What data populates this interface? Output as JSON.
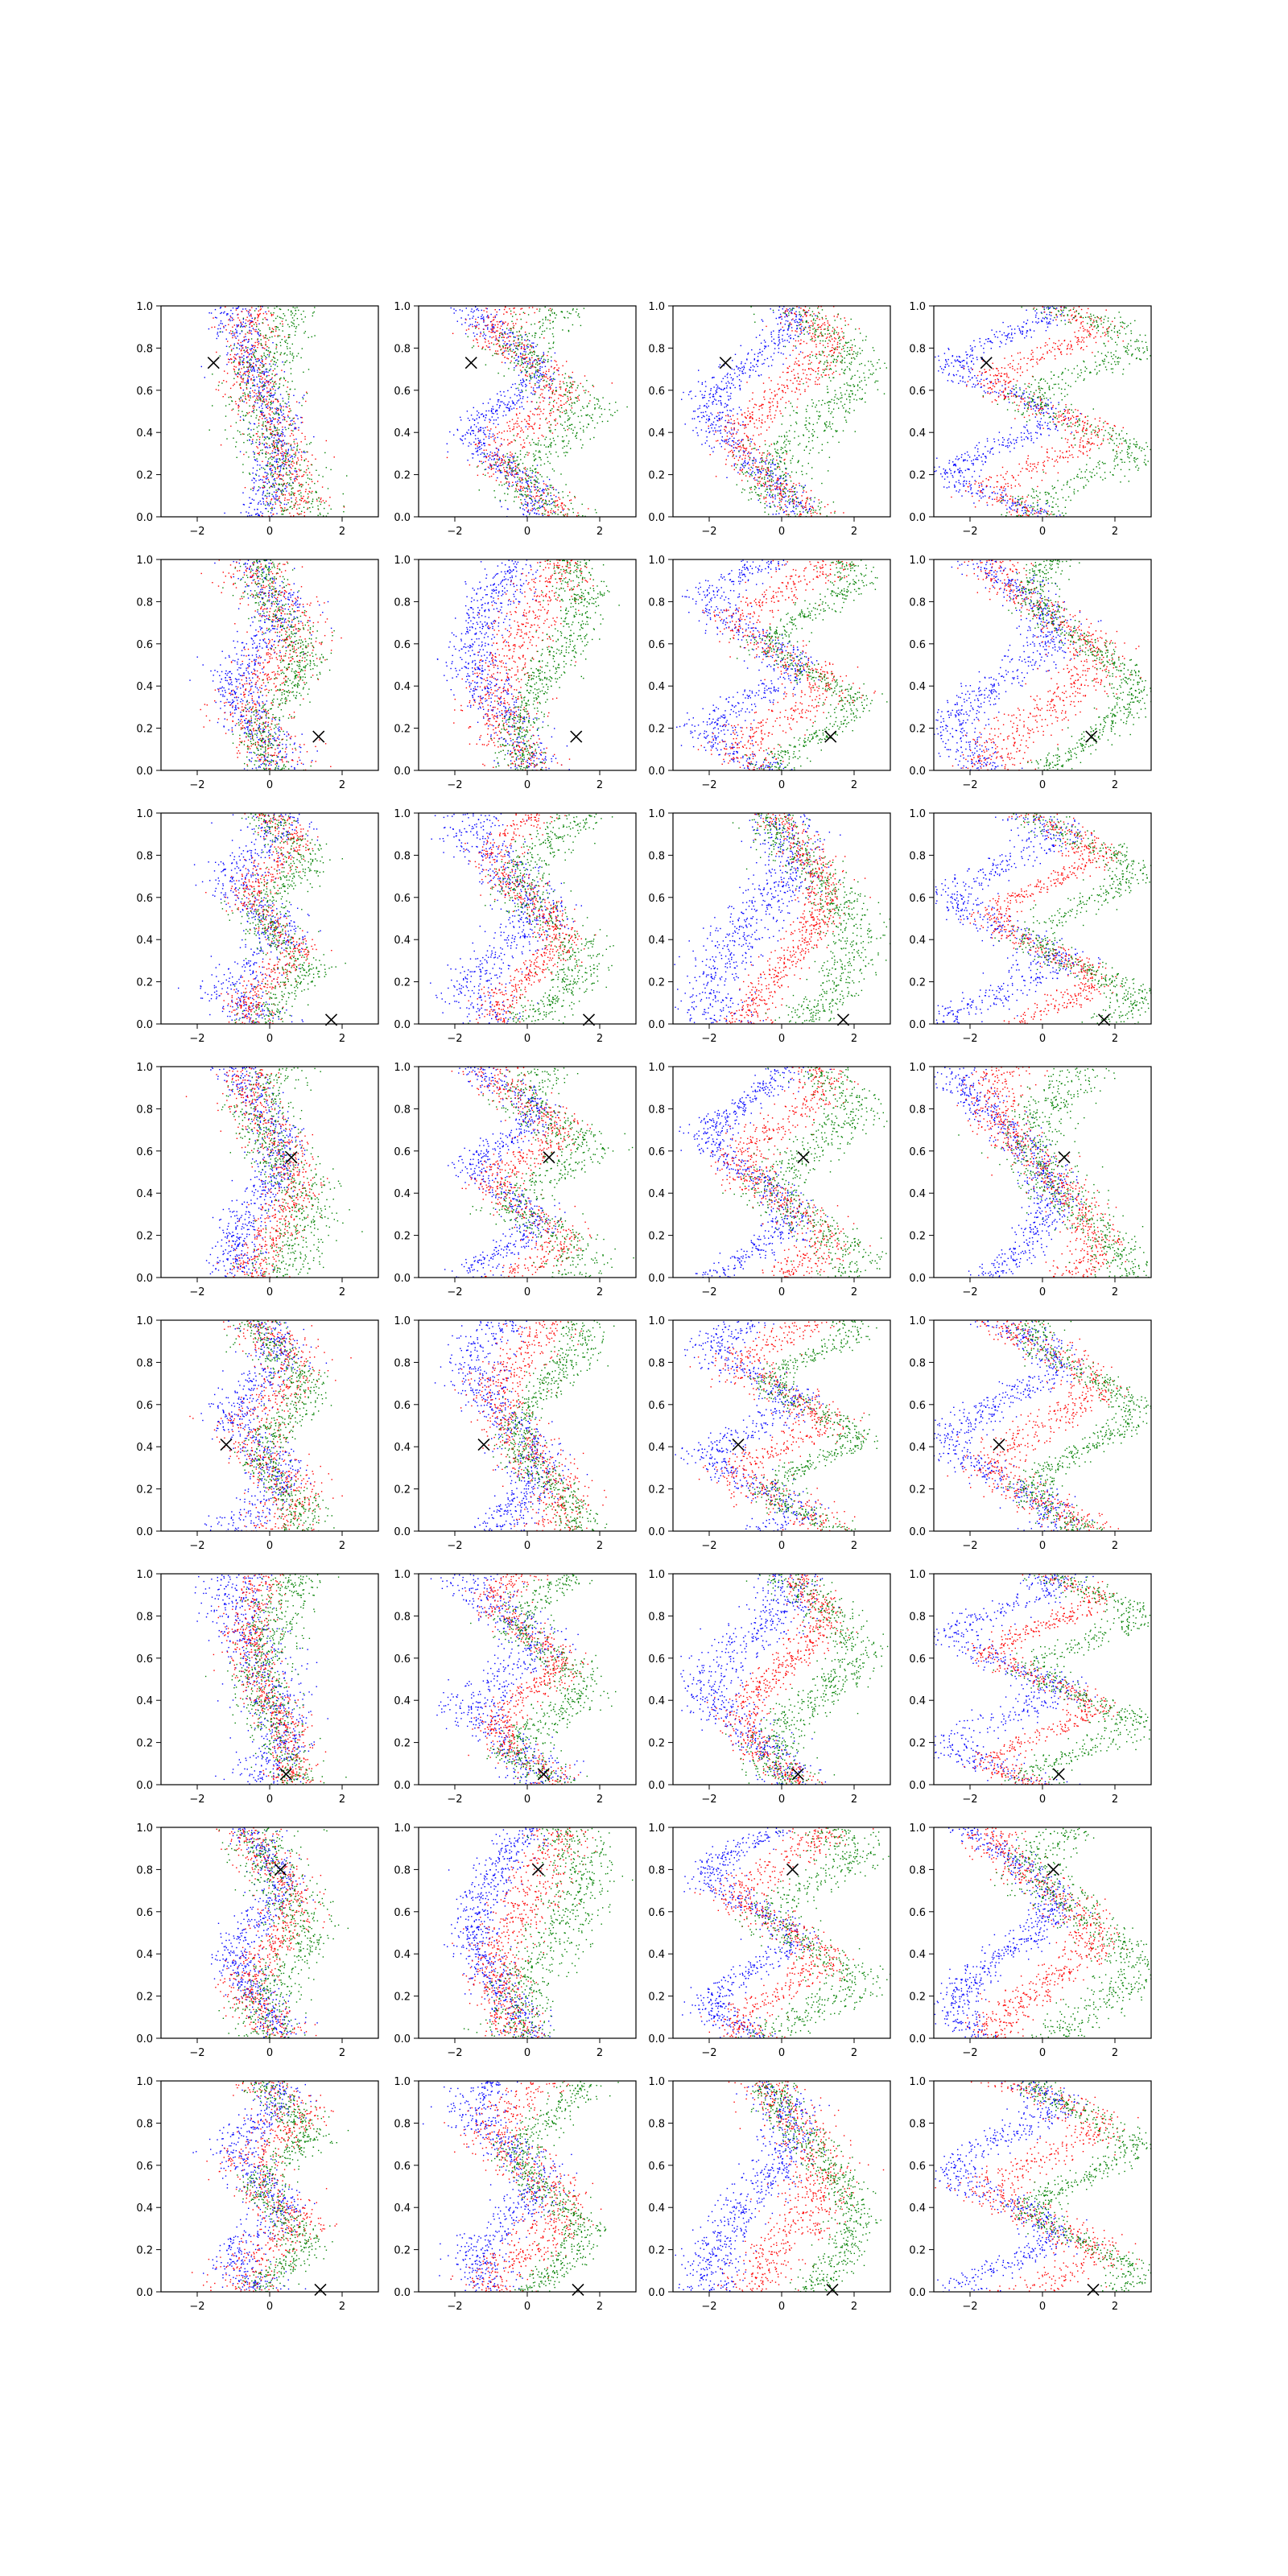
{
  "chart_data": {
    "type": "scatter",
    "grid": {
      "rows": 8,
      "cols": 4
    },
    "shared_axes": {
      "xlim": [
        -3.0,
        3.0
      ],
      "ylim": [
        0.0,
        1.0
      ],
      "xticks": [
        -2,
        0,
        2
      ],
      "yticks": [
        0.0,
        0.2,
        0.4,
        0.6,
        0.8,
        1.0
      ],
      "xtick_labels": [
        "−2",
        "0",
        "2"
      ],
      "ytick_labels": [
        "0.0",
        "0.2",
        "0.4",
        "0.6",
        "0.8",
        "1.0"
      ],
      "grid_lines": false
    },
    "colors": {
      "series_a": "#0000ff",
      "series_b": "#ff0000",
      "series_c": "#008000",
      "marker": "#000000"
    },
    "marker_style": "x",
    "markers_by_row": [
      {
        "x": -1.55,
        "y": 0.73
      },
      {
        "x": 1.35,
        "y": 0.16
      },
      {
        "x": 1.7,
        "y": 0.02
      },
      {
        "x": 0.6,
        "y": 0.57
      },
      {
        "x": -1.2,
        "y": 0.41
      },
      {
        "x": 0.45,
        "y": 0.05
      },
      {
        "x": 0.3,
        "y": 0.8
      },
      {
        "x": 1.4,
        "y": 0.01
      }
    ]
  }
}
